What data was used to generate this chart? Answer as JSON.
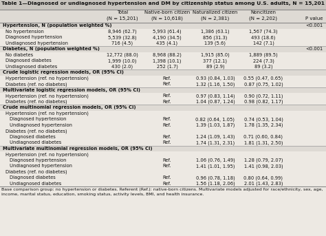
{
  "title": "Table 1—Diagnosed or undiagnosed hypertension and DM by citizenship status among U.S. adults, N = 15,201",
  "header_line1": [
    "",
    "Total",
    "Native-born citizen",
    "Naturalized citizen",
    "Noncitizen",
    ""
  ],
  "header_line2": [
    "",
    "(N = 15,201)",
    "(N = 10,618)",
    "(N = 2,381)",
    "(N = 2,202)",
    "P value"
  ],
  "rows": [
    [
      "Hypertension, N (population weighted %)",
      "",
      "",
      "",
      "",
      "<0.001"
    ],
    [
      "  No hypertension",
      "8,946 (62.7)",
      "5,993 (61.4)",
      "1,386 (63.1)",
      "1,567 (74.3)",
      ""
    ],
    [
      "  Diagnosed hypertension",
      "5,539 (32.8)",
      "4,190 (34.5)",
      "856 (31.3)",
      "493 (18.6)",
      ""
    ],
    [
      "  Undiagnosed hypertension",
      "716 (4.5)",
      "435 (4.1)",
      "139 (5.6)",
      "142 (7.1)",
      ""
    ],
    [
      "Diabetes, N (population weighted %)",
      "",
      "",
      "",
      "",
      "<0.001"
    ],
    [
      "  No diabetes",
      "12,772 (88.0)",
      "8,968 (88.2)",
      "1,915 (85.0)",
      "1,889 (89.5)",
      ""
    ],
    [
      "  Diagnosed diabetes",
      "1,999 (10.0)",
      "1,398 (10.1)",
      "377 (12.1)",
      "224 (7.3)",
      ""
    ],
    [
      "  Undiagnosed diabetes",
      "430 (2.0)",
      "252 (1.7)",
      "89 (2.9)",
      "89 (3.2)",
      ""
    ],
    [
      "Crude logistic regression models, OR (95% CI)",
      "",
      "",
      "",
      "",
      ""
    ],
    [
      "  Hypertension (ref. no hypertension)",
      "",
      "Ref.",
      "0.93 (0.84, 1.03)",
      "0.55 (0.47, 0.65)",
      ""
    ],
    [
      "  Diabetes (ref. no diabetes)",
      "",
      "Ref.",
      "1.32 (1.16, 1.50)",
      "0.87 (0.75, 1.02)",
      ""
    ],
    [
      "Multivariate logistic regression models, OR (95% CI)",
      "",
      "",
      "",
      "",
      ""
    ],
    [
      "  Hypertension (ref. no hypertension)",
      "",
      "Ref.",
      "0.97 (0.83, 1.14)",
      "0.90 (0.72, 1.11)",
      ""
    ],
    [
      "  Diabetes (ref. no diabetes)",
      "",
      "Ref.",
      "1.04 (0.87, 1.24)",
      "0.98 (0.82, 1.17)",
      ""
    ],
    [
      "Crude multinomial regression models, OR (95% CI)",
      "",
      "",
      "",
      "",
      ""
    ],
    [
      "  Hypertension (ref. no hypertension)",
      "",
      "",
      "",
      "",
      ""
    ],
    [
      "    Diagnosed hypertension",
      "",
      "Ref.",
      "0.82 (0.64, 1.05)",
      "0.74 (0.53, 1.04)",
      ""
    ],
    [
      "    Undiagnosed hypertension",
      "",
      "Ref.",
      "1.39 (1.03, 1.87)",
      "1.78 (1.35, 2.34)",
      ""
    ],
    [
      "  Diabetes (ref. no diabetes)",
      "",
      "",
      "",
      "",
      ""
    ],
    [
      "    Diagnosed diabetes",
      "",
      "Ref.",
      "1.24 (1.09, 1.43)",
      "0.71 (0.60, 0.84)",
      ""
    ],
    [
      "    Undiagnosed diabetes",
      "",
      "Ref.",
      "1.74 (1.31, 2.31)",
      "1.81 (1.31, 2.50)",
      ""
    ],
    [
      "Multivariate multinomial regression models, OR (95% CI)",
      "",
      "",
      "",
      "",
      ""
    ],
    [
      "  Hypertension (ref. no hypertension)",
      "",
      "",
      "",
      "",
      ""
    ],
    [
      "    Diagnosed hypertension",
      "",
      "Ref.",
      "1.06 (0.76, 1.49)",
      "1.28 (0.79, 2.07)",
      ""
    ],
    [
      "    Undiagnosed hypertension",
      "",
      "Ref.",
      "1.41 (1.01, 1.95)",
      "1.41 (0.98, 2.03)",
      ""
    ],
    [
      "  Diabetes (ref. no diabetes)",
      "",
      "",
      "",
      "",
      ""
    ],
    [
      "    Diagnosed diabetes",
      "",
      "Ref.",
      "0.96 (0.78, 1.18)",
      "0.80 (0.64, 0.99)",
      ""
    ],
    [
      "    Undiagnosed diabetes",
      "",
      "Ref.",
      "1.56 (1.18, 2.06)",
      "2.01 (1.43, 2.83)",
      ""
    ]
  ],
  "footnote1": "Base comparison group: no hypertension or diabetes. Referent (Ref.): native-born citizens. Multivariate models adjusted for race/ethnicity, sex, age,",
  "footnote2": "income, marital status, education, smoking status, activity levels, BMI, and health insurance.",
  "section_rows": [
    0,
    4,
    8,
    11,
    14,
    21
  ],
  "bg_color": "#ede9e3",
  "title_bg": "#c8c4be",
  "header_bg": "#dedad4",
  "section_bg": "#dedad4"
}
